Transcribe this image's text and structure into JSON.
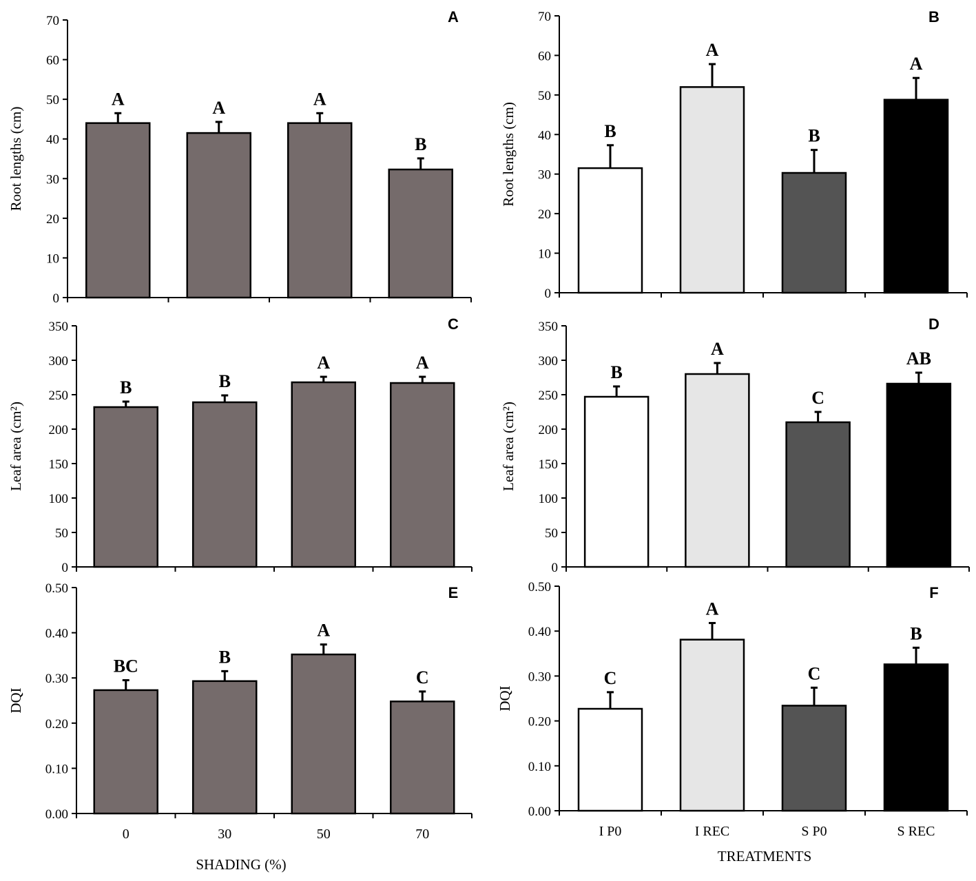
{
  "colors": {
    "shading_bar": "#756b6b",
    "I P0": "#ffffff",
    "I REC": "#e6e6e6",
    "S P0": "#545454",
    "S REC": "#000000"
  },
  "chart_data": [
    {
      "id": "A",
      "type": "bar",
      "panel_label": "A",
      "title": "",
      "xlabel": "",
      "ylabel": "Root lengths  (cm)",
      "categories": [
        "0",
        "30",
        "50",
        "70"
      ],
      "show_categories": false,
      "values": [
        44,
        41.5,
        44,
        32.3
      ],
      "errors": [
        2.5,
        2.8,
        2.5,
        2.8
      ],
      "significance": [
        "A",
        "A",
        "A",
        "B"
      ],
      "ylim": [
        0,
        70
      ],
      "yticks": [
        "0",
        "10",
        "20",
        "30",
        "40",
        "50",
        "60",
        "70"
      ],
      "bar_colors": [
        "#756b6b",
        "#756b6b",
        "#756b6b",
        "#756b6b"
      ]
    },
    {
      "id": "B",
      "type": "bar",
      "panel_label": "B",
      "title": "",
      "xlabel": "",
      "ylabel": "Root lengths  (cm)",
      "categories": [
        "I P0",
        "I REC",
        "S P0",
        "S REC"
      ],
      "show_categories": false,
      "values": [
        31.5,
        52,
        30.3,
        48.8
      ],
      "errors": [
        5.8,
        5.8,
        5.8,
        5.5
      ],
      "significance": [
        "B",
        "A",
        "B",
        "A"
      ],
      "ylim": [
        0,
        70
      ],
      "yticks": [
        "0",
        "10",
        "20",
        "30",
        "40",
        "50",
        "60",
        "70"
      ],
      "bar_colors": [
        "#ffffff",
        "#e6e6e6",
        "#545454",
        "#000000"
      ]
    },
    {
      "id": "C",
      "type": "bar",
      "panel_label": "C",
      "title": "",
      "xlabel": "",
      "ylabel": "Leaf area   (cm²)",
      "categories": [
        "0",
        "30",
        "50",
        "70"
      ],
      "show_categories": false,
      "values": [
        232,
        239,
        268,
        267
      ],
      "errors": [
        8,
        10,
        8,
        9
      ],
      "significance": [
        "B",
        "B",
        "A",
        "A"
      ],
      "ylim": [
        0,
        350
      ],
      "yticks": [
        "0",
        "50",
        "100",
        "150",
        "200",
        "250",
        "300",
        "350"
      ],
      "bar_colors": [
        "#756b6b",
        "#756b6b",
        "#756b6b",
        "#756b6b"
      ]
    },
    {
      "id": "D",
      "type": "bar",
      "panel_label": "D",
      "title": "",
      "xlabel": "",
      "ylabel": "Leaf area   (cm²)",
      "categories": [
        "I P0",
        "I REC",
        "S P0",
        "S REC"
      ],
      "show_categories": false,
      "values": [
        247,
        280,
        210,
        266
      ],
      "errors": [
        15,
        16,
        15,
        16
      ],
      "significance": [
        "B",
        "A",
        "C",
        "AB"
      ],
      "ylim": [
        0,
        350
      ],
      "yticks": [
        "0",
        "50",
        "100",
        "150",
        "200",
        "250",
        "300",
        "350"
      ],
      "bar_colors": [
        "#ffffff",
        "#e6e6e6",
        "#545454",
        "#000000"
      ]
    },
    {
      "id": "E",
      "type": "bar",
      "panel_label": "E",
      "title": "",
      "xlabel": "SHADING (%)",
      "ylabel": "DQI",
      "categories": [
        "0",
        "30",
        "50",
        "70"
      ],
      "show_categories": true,
      "values": [
        0.273,
        0.293,
        0.352,
        0.248
      ],
      "errors": [
        0.022,
        0.022,
        0.022,
        0.022
      ],
      "significance": [
        "BC",
        "B",
        "A",
        "C"
      ],
      "ylim": [
        0,
        0.5
      ],
      "yticks": [
        "0.00",
        "0.10",
        "0.20",
        "0.30",
        "0.40",
        "0.50"
      ],
      "bar_colors": [
        "#756b6b",
        "#756b6b",
        "#756b6b",
        "#756b6b"
      ]
    },
    {
      "id": "F",
      "type": "bar",
      "panel_label": "F",
      "title": "",
      "xlabel": "TREATMENTS",
      "ylabel": "DQI",
      "categories": [
        "I P0",
        "I REC",
        "S P0",
        "S REC"
      ],
      "show_categories": true,
      "values": [
        0.227,
        0.381,
        0.234,
        0.326
      ],
      "errors": [
        0.037,
        0.037,
        0.04,
        0.037
      ],
      "significance": [
        "C",
        "A",
        "C",
        "B"
      ],
      "ylim": [
        0,
        0.5
      ],
      "yticks": [
        "0.00",
        "0.10",
        "0.20",
        "0.30",
        "0.40",
        "0.50"
      ],
      "bar_colors": [
        "#ffffff",
        "#e6e6e6",
        "#545454",
        "#000000"
      ]
    }
  ]
}
